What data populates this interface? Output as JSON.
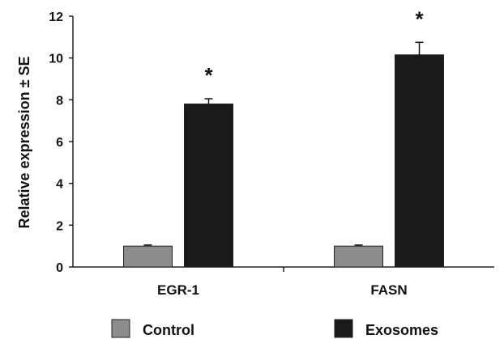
{
  "chart_data": {
    "type": "bar",
    "ylabel": "Relative expression ± SE",
    "ylim": [
      0,
      12
    ],
    "yticks": [
      0,
      2,
      4,
      6,
      8,
      10,
      12
    ],
    "categories": [
      "EGR-1",
      "FASN"
    ],
    "series": [
      {
        "name": "Control",
        "values": [
          1.0,
          1.0
        ],
        "errors": [
          0.05,
          0.05
        ],
        "color": "#8c8c8c"
      },
      {
        "name": "Exosomes",
        "values": [
          7.8,
          10.15
        ],
        "errors": [
          0.25,
          0.6
        ],
        "color": "#1a1a1a"
      }
    ],
    "significance": [
      {
        "category": "EGR-1",
        "series": "Exosomes",
        "label": "*"
      },
      {
        "category": "FASN",
        "series": "Exosomes",
        "label": "*"
      }
    ],
    "legend_position": "bottom"
  }
}
